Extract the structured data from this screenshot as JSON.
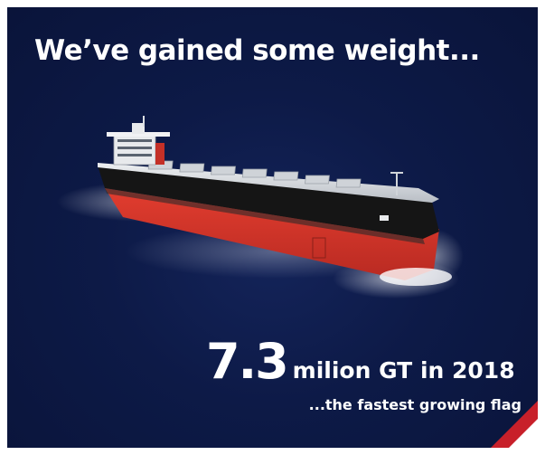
{
  "poster": {
    "headline": "We’ve gained some weight...",
    "stat_number": "7.3",
    "stat_text": "milion GT in 2018",
    "tagline": "...the fastest growing flag"
  },
  "colors": {
    "background": "#0d1a47",
    "hull_red": "#d6352b",
    "hull_black": "#151515",
    "deck": "#d9dde2",
    "text": "#ffffff",
    "corner_accent": "#c8202a"
  },
  "icons": {
    "ship": "bulk-carrier-ship-illustration",
    "corner": "red-corner-stripe"
  }
}
